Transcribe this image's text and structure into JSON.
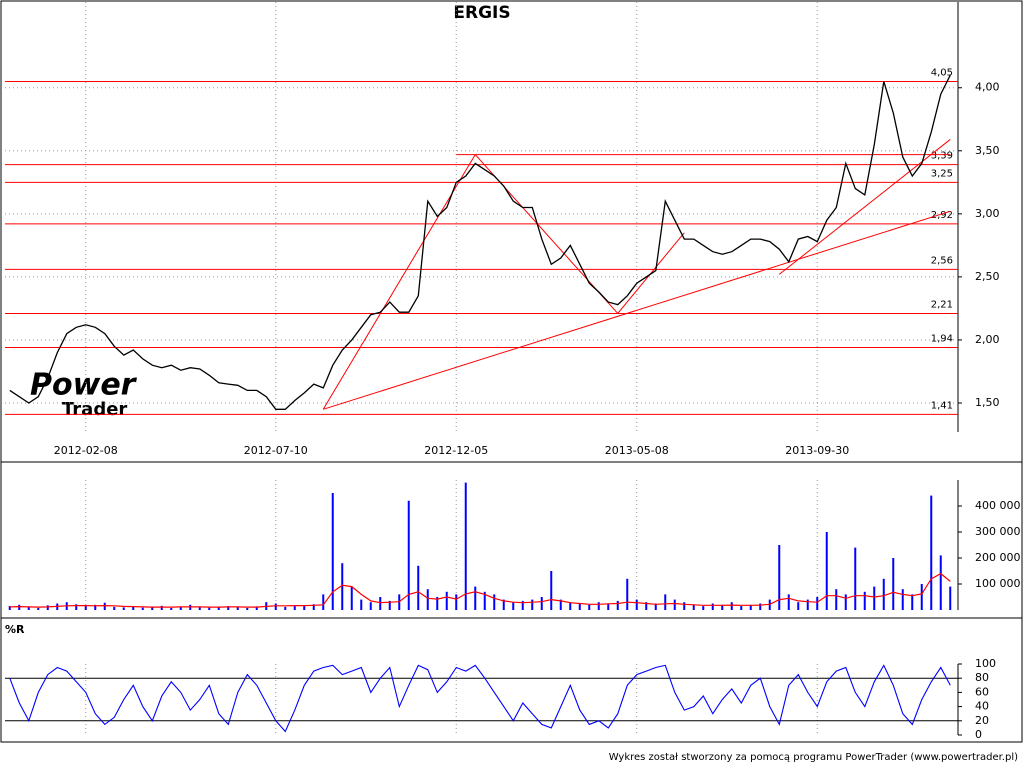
{
  "chart_data": [
    {
      "type": "line",
      "title": "ERGIS",
      "color": "#000000",
      "grid": true,
      "level_color": "#ff0000",
      "categories": [
        null,
        null,
        null,
        null,
        null,
        null,
        null,
        null,
        "2012-02-08",
        null,
        null,
        null,
        null,
        null,
        null,
        null,
        null,
        null,
        null,
        null,
        null,
        null,
        null,
        null,
        null,
        null,
        null,
        null,
        "2012-07-10",
        null,
        null,
        null,
        null,
        null,
        null,
        null,
        null,
        null,
        null,
        null,
        null,
        null,
        null,
        null,
        null,
        null,
        null,
        "2012-12-05",
        null,
        null,
        null,
        null,
        null,
        null,
        null,
        null,
        null,
        null,
        null,
        null,
        null,
        null,
        null,
        null,
        null,
        null,
        "2013-05-08",
        null,
        null,
        null,
        null,
        null,
        null,
        null,
        null,
        null,
        null,
        null,
        null,
        null,
        null,
        null,
        null,
        null,
        null,
        "2013-09-30",
        null,
        null,
        null,
        null,
        null,
        null,
        null,
        null,
        null,
        null,
        null,
        null,
        null,
        null
      ],
      "values": [
        1.6,
        1.55,
        1.5,
        1.55,
        1.7,
        1.9,
        2.05,
        2.1,
        2.12,
        2.1,
        2.05,
        1.95,
        1.88,
        1.92,
        1.85,
        1.8,
        1.78,
        1.8,
        1.76,
        1.78,
        1.77,
        1.72,
        1.66,
        1.65,
        1.64,
        1.6,
        1.6,
        1.55,
        1.45,
        1.45,
        1.52,
        1.58,
        1.65,
        1.62,
        1.8,
        1.92,
        2.0,
        2.1,
        2.2,
        2.22,
        2.3,
        2.22,
        2.22,
        2.35,
        3.1,
        2.98,
        3.05,
        3.25,
        3.3,
        3.4,
        3.35,
        3.3,
        3.22,
        3.1,
        3.05,
        3.05,
        2.8,
        2.6,
        2.65,
        2.75,
        2.6,
        2.45,
        2.38,
        2.3,
        2.28,
        2.35,
        2.45,
        2.5,
        2.55,
        3.1,
        2.95,
        2.8,
        2.8,
        2.75,
        2.7,
        2.68,
        2.7,
        2.75,
        2.8,
        2.8,
        2.78,
        2.72,
        2.62,
        2.8,
        2.82,
        2.78,
        2.95,
        3.05,
        3.4,
        3.2,
        3.15,
        3.55,
        4.05,
        3.8,
        3.45,
        3.3,
        3.4,
        3.65,
        3.95,
        4.1
      ],
      "ylim": [
        1.27,
        4.68
      ],
      "yticks": [
        {
          "value": 1.5,
          "label": "1,50"
        },
        {
          "value": 2,
          "label": "2,00"
        },
        {
          "value": 2.5,
          "label": "2,50"
        },
        {
          "value": 3,
          "label": "3,00"
        },
        {
          "value": 3.5,
          "label": "3,50"
        },
        {
          "value": 4,
          "label": "4,00"
        }
      ],
      "levels": [
        {
          "value": 4.05,
          "label": "4,05"
        },
        {
          "value": 3.39,
          "label": "3,39"
        },
        {
          "value": 3.25,
          "label": "3,25"
        },
        {
          "value": 2.92,
          "label": "2,92"
        },
        {
          "value": 2.56,
          "label": "2,56"
        },
        {
          "value": 2.21,
          "label": "2,21"
        },
        {
          "value": 1.94,
          "label": "1,94"
        },
        {
          "value": 1.41,
          "label": "1,41"
        }
      ],
      "trendlines": [
        [
          33,
          1.45,
          99,
          3.02
        ],
        [
          33,
          1.45,
          49,
          3.47
        ],
        [
          49,
          3.47,
          64,
          2.21
        ],
        [
          64,
          2.21,
          71,
          2.85
        ],
        [
          81,
          2.52,
          99,
          3.59
        ],
        [
          47,
          3.47,
          99,
          3.47
        ]
      ]
    },
    {
      "type": "bar",
      "color": "#0000ff",
      "values": [
        15000,
        20000,
        12000,
        8000,
        18000,
        25000,
        30000,
        22000,
        15000,
        20000,
        28000,
        12000,
        10000,
        14000,
        9000,
        11000,
        16000,
        8000,
        12000,
        20000,
        10000,
        9000,
        13000,
        15000,
        11000,
        8000,
        14000,
        30000,
        25000,
        12000,
        15000,
        18000,
        22000,
        60000,
        450000,
        180000,
        90000,
        40000,
        30000,
        50000,
        35000,
        60000,
        420000,
        170000,
        80000,
        50000,
        70000,
        60000,
        490000,
        90000,
        70000,
        60000,
        40000,
        30000,
        35000,
        40000,
        50000,
        150000,
        40000,
        30000,
        25000,
        20000,
        30000,
        25000,
        35000,
        120000,
        40000,
        30000,
        25000,
        60000,
        40000,
        30000,
        20000,
        15000,
        25000,
        20000,
        30000,
        15000,
        20000,
        25000,
        40000,
        250000,
        60000,
        30000,
        40000,
        50000,
        300000,
        80000,
        60000,
        240000,
        70000,
        90000,
        120000,
        200000,
        80000,
        60000,
        100000,
        440000,
        210000,
        90000
      ],
      "moving_average": {
        "color": "#ff0000",
        "values": [
          12000,
          13000,
          12000,
          11000,
          12000,
          14000,
          16000,
          17000,
          17000,
          16000,
          17000,
          16000,
          14000,
          13000,
          12000,
          11000,
          11000,
          11000,
          12000,
          12000,
          12000,
          11000,
          11000,
          12000,
          12000,
          11000,
          11000,
          14000,
          16000,
          16000,
          17000,
          17000,
          18000,
          20000,
          70000,
          95000,
          90000,
          60000,
          35000,
          28000,
          30000,
          32000,
          60000,
          70000,
          45000,
          42000,
          50000,
          42000,
          62000,
          70000,
          60000,
          45000,
          35000,
          30000,
          28000,
          30000,
          32000,
          40000,
          35000,
          28000,
          25000,
          22000,
          22000,
          24000,
          25000,
          30000,
          28000,
          25000,
          22000,
          24000,
          25000,
          22000,
          20000,
          18000,
          18000,
          18000,
          19000,
          18000,
          18000,
          19000,
          22000,
          40000,
          45000,
          35000,
          32000,
          30000,
          55000,
          55000,
          45000,
          55000,
          55000,
          50000,
          55000,
          68000,
          60000,
          55000,
          62000,
          120000,
          140000,
          110000
        ]
      },
      "ylim": [
        0,
        500000
      ],
      "yticks": [
        {
          "value": 100000,
          "label": "100 000"
        },
        {
          "value": 200000,
          "label": "200 000"
        },
        {
          "value": 300000,
          "label": "300 000"
        },
        {
          "value": 400000,
          "label": "400 000"
        }
      ]
    },
    {
      "type": "line",
      "title": "%R",
      "color": "#0000ff",
      "values": [
        80,
        45,
        20,
        60,
        85,
        95,
        90,
        75,
        60,
        30,
        15,
        25,
        50,
        70,
        40,
        20,
        55,
        75,
        60,
        35,
        50,
        70,
        30,
        15,
        60,
        85,
        70,
        45,
        20,
        5,
        35,
        70,
        90,
        95,
        98,
        85,
        90,
        95,
        60,
        80,
        95,
        40,
        70,
        98,
        92,
        60,
        75,
        95,
        90,
        98,
        80,
        60,
        40,
        20,
        45,
        30,
        15,
        10,
        40,
        70,
        35,
        15,
        20,
        10,
        30,
        70,
        85,
        90,
        95,
        98,
        60,
        35,
        40,
        55,
        30,
        50,
        65,
        45,
        70,
        80,
        40,
        15,
        70,
        85,
        60,
        40,
        75,
        90,
        95,
        60,
        40,
        75,
        98,
        70,
        30,
        15,
        50,
        75,
        95,
        70
      ],
      "ylim": [
        0,
        100
      ],
      "yticks": [
        0,
        20,
        40,
        60,
        80,
        100
      ],
      "levels": [
        20,
        80
      ]
    }
  ],
  "watermark": [
    "Power",
    "Trader"
  ],
  "footer": "Wykres został stworzony za pomocą programu PowerTrader (www.powertrader.pl)"
}
